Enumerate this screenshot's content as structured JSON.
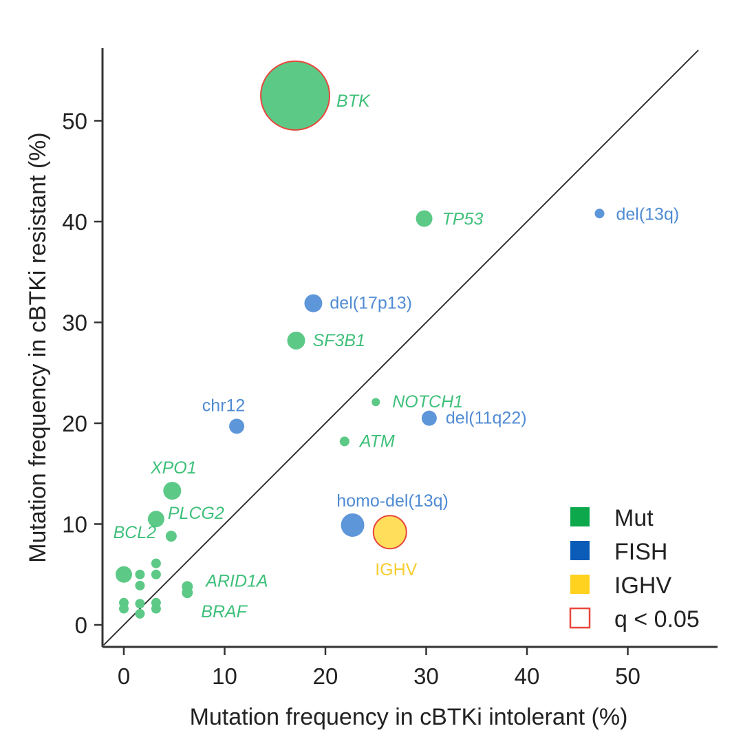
{
  "chart_data": {
    "type": "scatter",
    "xlabel": "Mutation frequency in cBTKi intolerant (%)",
    "ylabel": "Mutation frequency in cBTKi resistant (%)",
    "xlim": [
      -2,
      57
    ],
    "ylim": [
      -2,
      57
    ],
    "xticks": [
      0,
      10,
      20,
      30,
      40,
      50
    ],
    "yticks": [
      0,
      10,
      20,
      30,
      40,
      50
    ],
    "diagonal": true,
    "grid": false,
    "legend_position": "bottom-right",
    "legend": [
      {
        "label": "Mut",
        "type": "fill",
        "color": "#0DA84B"
      },
      {
        "label": "FISH",
        "type": "fill",
        "color": "#0B5CB8"
      },
      {
        "label": "IGHV",
        "type": "fill",
        "color": "#FFD21F"
      },
      {
        "label": "q < 0.05",
        "type": "outline",
        "color": "#E8463C"
      }
    ],
    "colors": {
      "Mut": "#5DC987",
      "FISH": "#5E96DA",
      "IGHV": "#FFDE5C",
      "sig_outline": "#E8463C"
    },
    "points": [
      {
        "label": "BTK",
        "x": 17,
        "y": 52.5,
        "size": 5.0,
        "group": "Mut",
        "significant": true,
        "italic": true
      },
      {
        "label": "TP53",
        "x": 29.8,
        "y": 40.3,
        "size": 1.2,
        "group": "Mut",
        "significant": false,
        "italic": true
      },
      {
        "label": "del(13q)",
        "x": 47.2,
        "y": 40.8,
        "size": 0.7,
        "group": "FISH",
        "significant": false,
        "italic": false
      },
      {
        "label": "del(17p13)",
        "x": 18.8,
        "y": 31.9,
        "size": 1.3,
        "group": "FISH",
        "significant": false,
        "italic": false
      },
      {
        "label": "SF3B1",
        "x": 17.1,
        "y": 28.2,
        "size": 1.3,
        "group": "Mut",
        "significant": false,
        "italic": true
      },
      {
        "label": "chr12",
        "x": 11.2,
        "y": 19.7,
        "size": 1.1,
        "group": "FISH",
        "significant": false,
        "italic": false
      },
      {
        "label": "NOTCH1",
        "x": 25.0,
        "y": 22.1,
        "size": 0.6,
        "group": "Mut",
        "significant": false,
        "italic": true
      },
      {
        "label": "del(11q22)",
        "x": 30.3,
        "y": 20.5,
        "size": 1.1,
        "group": "FISH",
        "significant": false,
        "italic": false
      },
      {
        "label": "ATM",
        "x": 21.9,
        "y": 18.2,
        "size": 0.7,
        "group": "Mut",
        "significant": false,
        "italic": true
      },
      {
        "label": "XPO1",
        "x": 4.8,
        "y": 13.3,
        "size": 1.3,
        "group": "Mut",
        "significant": false,
        "italic": true
      },
      {
        "label": "PLCG2",
        "x": 3.2,
        "y": 10.5,
        "size": 1.2,
        "group": "Mut",
        "significant": false,
        "italic": true
      },
      {
        "label": "homo-del(13q)",
        "x": 22.7,
        "y": 9.9,
        "size": 1.7,
        "group": "FISH",
        "significant": false,
        "italic": false
      },
      {
        "label": "IGHV",
        "x": 26.4,
        "y": 9.2,
        "size": 2.4,
        "group": "IGHV",
        "significant": true,
        "italic": false
      },
      {
        "label": "BCL2",
        "x": 4.7,
        "y": 8.8,
        "size": 0.8,
        "group": "Mut",
        "significant": false,
        "italic": true
      },
      {
        "label": "ARID1A",
        "x": 6.3,
        "y": 3.8,
        "size": 0.8,
        "group": "Mut",
        "significant": false,
        "italic": true
      },
      {
        "label": "BRAF",
        "x": 6.3,
        "y": 3.2,
        "size": 0.8,
        "group": "Mut",
        "significant": false,
        "italic": true
      },
      {
        "label": "",
        "x": 0.0,
        "y": 5.0,
        "size": 1.2,
        "group": "Mut",
        "significant": false,
        "italic": true
      },
      {
        "label": "",
        "x": 1.6,
        "y": 5.0,
        "size": 0.7,
        "group": "Mut",
        "significant": false,
        "italic": true
      },
      {
        "label": "",
        "x": 1.6,
        "y": 3.9,
        "size": 0.7,
        "group": "Mut",
        "significant": false,
        "italic": true
      },
      {
        "label": "",
        "x": 3.2,
        "y": 6.1,
        "size": 0.7,
        "group": "Mut",
        "significant": false,
        "italic": true
      },
      {
        "label": "",
        "x": 3.2,
        "y": 5.0,
        "size": 0.7,
        "group": "Mut",
        "significant": false,
        "italic": true
      },
      {
        "label": "",
        "x": 0.0,
        "y": 2.2,
        "size": 0.7,
        "group": "Mut",
        "significant": false,
        "italic": true
      },
      {
        "label": "",
        "x": 0.0,
        "y": 1.6,
        "size": 0.7,
        "group": "Mut",
        "significant": false,
        "italic": true
      },
      {
        "label": "",
        "x": 1.6,
        "y": 2.1,
        "size": 0.7,
        "group": "Mut",
        "significant": false,
        "italic": true
      },
      {
        "label": "",
        "x": 1.6,
        "y": 1.1,
        "size": 0.7,
        "group": "Mut",
        "significant": false,
        "italic": true
      },
      {
        "label": "",
        "x": 3.2,
        "y": 2.2,
        "size": 0.7,
        "group": "Mut",
        "significant": false,
        "italic": true
      },
      {
        "label": "",
        "x": 3.2,
        "y": 1.6,
        "size": 0.7,
        "group": "Mut",
        "significant": false,
        "italic": true
      }
    ]
  }
}
